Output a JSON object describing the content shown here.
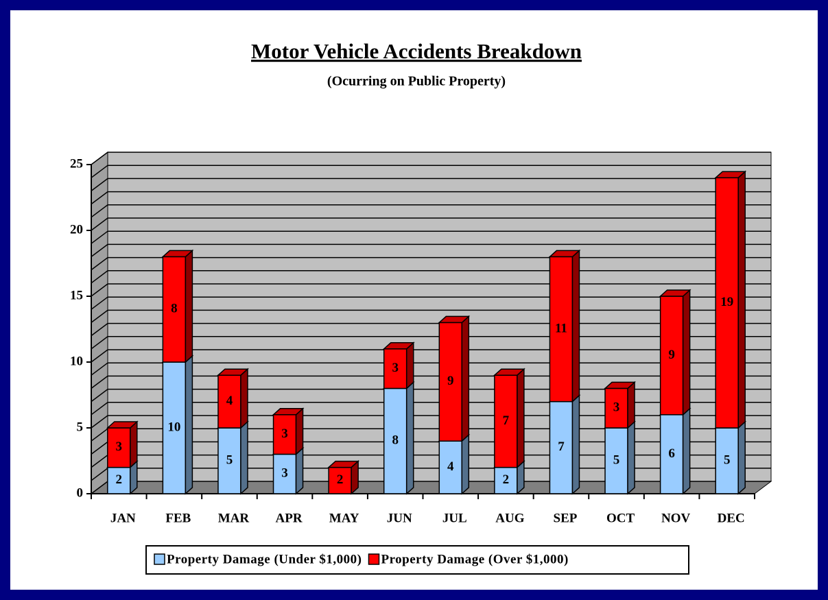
{
  "chart_data": {
    "type": "bar3d_stacked",
    "title": "Motor Vehicle Accidents Breakdown",
    "subtitle": "(Ocurring on Public Property)",
    "categories": [
      "JAN",
      "FEB",
      "MAR",
      "APR",
      "MAY",
      "JUN",
      "JUL",
      "AUG",
      "SEP",
      "OCT",
      "NOV",
      "DEC"
    ],
    "series": [
      {
        "name": "Property Damage (Under $1,000)",
        "color": "#99ccff",
        "values": [
          2,
          10,
          5,
          3,
          null,
          8,
          4,
          2,
          7,
          5,
          6,
          5
        ]
      },
      {
        "name": "Property Damage (Over $1,000)",
        "color": "#ff0000",
        "values": [
          3,
          8,
          4,
          3,
          2,
          3,
          9,
          7,
          11,
          3,
          9,
          19
        ]
      }
    ],
    "ylim": [
      0,
      25
    ],
    "yticks": [
      0,
      5,
      10,
      15,
      20,
      25
    ],
    "minor_yticks": [
      1,
      2,
      3,
      4,
      6,
      7,
      8,
      9,
      11,
      12,
      13,
      14,
      16,
      17,
      18,
      19,
      21,
      22,
      23,
      24
    ],
    "grid": true,
    "legend": "bottom"
  }
}
